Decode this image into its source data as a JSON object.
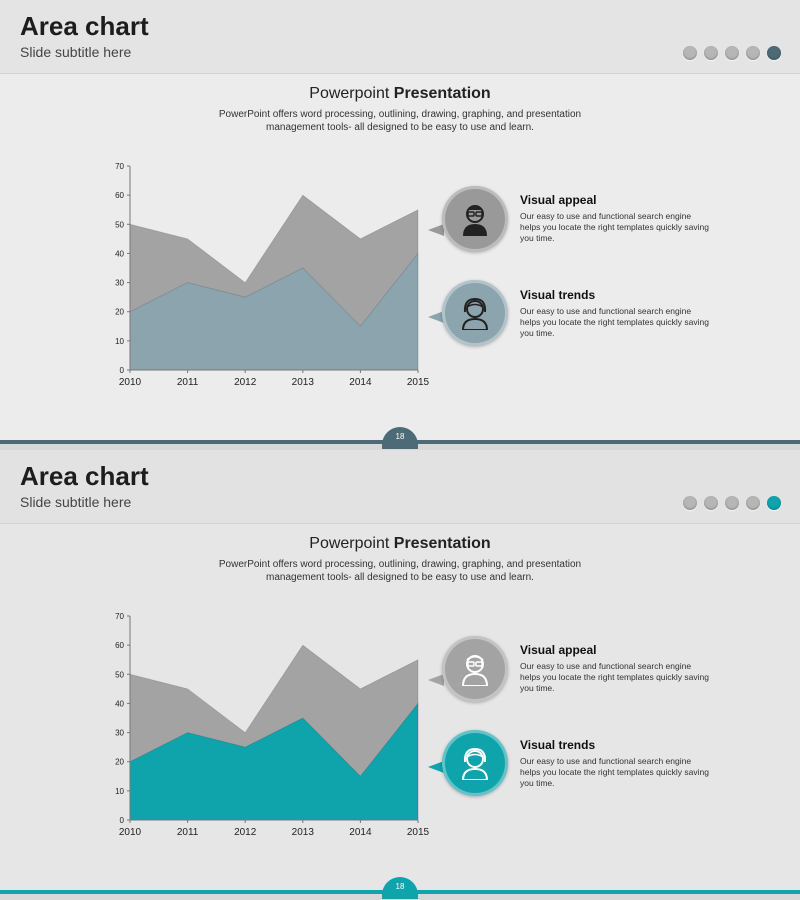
{
  "slides": [
    {
      "title": "Area chart",
      "subtitle": "Slide subtitle here",
      "heading_light": "Powerpoint ",
      "heading_bold": "Presentation",
      "description": "PowerPoint offers word processing, outlining, drawing, graphing, and presentation management tools- all designed to be easy to use and learn.",
      "page_number": "18",
      "accent_color": "#4d6a77",
      "items": [
        {
          "title": "Visual appeal",
          "text": "Our easy to use and functional search engine helps you locate the right templates quickly saving you time.",
          "icon": "man-glasses-icon"
        },
        {
          "title": "Visual trends",
          "text": "Our easy to use and functional search engine helps you locate the right templates quickly saving you time.",
          "icon": "woman-icon"
        }
      ]
    },
    {
      "title": "Area chart",
      "subtitle": "Slide subtitle here",
      "heading_light": "Powerpoint ",
      "heading_bold": "Presentation",
      "description": "PowerPoint offers word processing, outlining, drawing, graphing, and presentation management tools- all designed to be easy to use and learn.",
      "page_number": "18",
      "accent_color": "#0fa3ac",
      "items": [
        {
          "title": "Visual appeal",
          "text": "Our easy to use and functional search engine helps you locate the right templates quickly saving you time.",
          "icon": "man-glasses-icon"
        },
        {
          "title": "Visual trends",
          "text": "Our easy to use and functional search engine helps you locate the right templates quickly saving you time.",
          "icon": "woman-icon"
        }
      ]
    }
  ],
  "chart_data": [
    {
      "type": "area",
      "categories": [
        "2010",
        "2011",
        "2012",
        "2013",
        "2014",
        "2015"
      ],
      "series": [
        {
          "values": [
            50,
            45,
            30,
            60,
            45,
            55
          ],
          "color": "#a3a3a3"
        },
        {
          "values": [
            20,
            30,
            25,
            35,
            15,
            40
          ],
          "color": "#8ba4ae"
        }
      ],
      "ylim": [
        0,
        70
      ],
      "yticks": [
        "0",
        "10",
        "20",
        "30",
        "40",
        "50",
        "60",
        "70"
      ]
    },
    {
      "type": "area",
      "categories": [
        "2010",
        "2011",
        "2012",
        "2013",
        "2014",
        "2015"
      ],
      "series": [
        {
          "values": [
            50,
            45,
            30,
            60,
            45,
            55
          ],
          "color": "#a3a3a3"
        },
        {
          "values": [
            20,
            30,
            25,
            35,
            15,
            40
          ],
          "color": "#0fa3ac"
        }
      ],
      "ylim": [
        0,
        70
      ],
      "yticks": [
        "0",
        "10",
        "20",
        "30",
        "40",
        "50",
        "60",
        "70"
      ]
    }
  ],
  "dot_colors": [
    "#b6b6b6",
    "#b6b6b6",
    "#b6b6b6",
    "#b6b6b6"
  ],
  "bubble_colors": {
    "slide1": [
      "#999999",
      "#8ba4ae"
    ],
    "slide2": [
      "#a3a3a3",
      "#0fa3ac"
    ]
  }
}
